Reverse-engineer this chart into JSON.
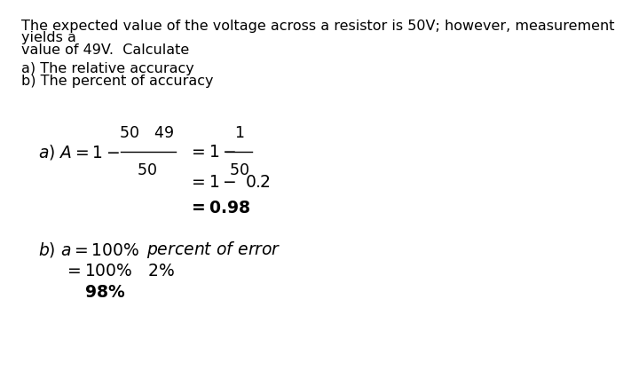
{
  "bg_color": "#ffffff",
  "text_color": "#000000",
  "intro_line1": "The expected value of the voltage across a resistor is 50V; however, measurement",
  "intro_line2": "yields a",
  "intro_line3": "value of 49V.  Calculate",
  "question_a": "a) The relative accuracy",
  "question_b": "b) The percent of accuracy",
  "font_size_text": 11.5,
  "font_size_math": 13.5
}
